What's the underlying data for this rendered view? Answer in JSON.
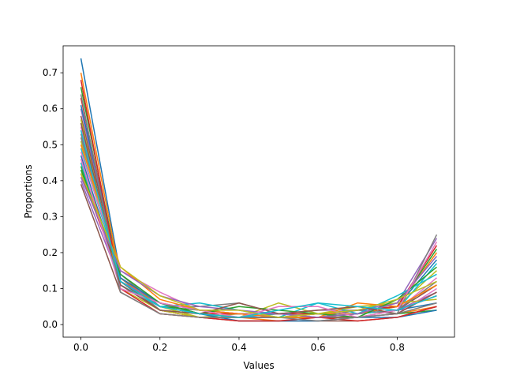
{
  "chart_data": {
    "type": "line",
    "title": "",
    "xlabel": "Values",
    "ylabel": "Proportions",
    "x": [
      0.0,
      0.1,
      0.2,
      0.3,
      0.4,
      0.5,
      0.6,
      0.7,
      0.8,
      0.9
    ],
    "xlim": [
      -0.045,
      0.945
    ],
    "ylim": [
      -0.035,
      0.775
    ],
    "xticks": [
      0.0,
      0.2,
      0.4,
      0.6,
      0.8
    ],
    "xtick_labels": [
      "0.0",
      "0.2",
      "0.4",
      "0.6",
      "0.8"
    ],
    "yticks": [
      0.0,
      0.1,
      0.2,
      0.3,
      0.4,
      0.5,
      0.6,
      0.7
    ],
    "ytick_labels": [
      "0.0",
      "0.1",
      "0.2",
      "0.3",
      "0.4",
      "0.5",
      "0.6",
      "0.7"
    ],
    "grid": false,
    "legend": "none",
    "colors": [
      "#1f77b4",
      "#ff7f0e",
      "#2ca02c",
      "#d62728",
      "#9467bd",
      "#8c564b",
      "#e377c2",
      "#7f7f7f",
      "#bcbd22",
      "#17becf"
    ],
    "series": [
      {
        "values": [
          0.74,
          0.14,
          0.05,
          0.03,
          0.02,
          0.02,
          0.02,
          0.03,
          0.04,
          0.06
        ]
      },
      {
        "values": [
          0.7,
          0.13,
          0.04,
          0.02,
          0.02,
          0.01,
          0.02,
          0.02,
          0.03,
          0.05
        ]
      },
      {
        "values": [
          0.66,
          0.12,
          0.05,
          0.03,
          0.02,
          0.02,
          0.02,
          0.02,
          0.03,
          0.04
        ]
      },
      {
        "values": [
          0.63,
          0.12,
          0.04,
          0.02,
          0.02,
          0.02,
          0.03,
          0.03,
          0.04,
          0.08
        ]
      },
      {
        "values": [
          0.6,
          0.11,
          0.05,
          0.03,
          0.03,
          0.02,
          0.02,
          0.03,
          0.04,
          0.09
        ]
      },
      {
        "values": [
          0.58,
          0.12,
          0.04,
          0.02,
          0.02,
          0.02,
          0.02,
          0.02,
          0.04,
          0.11
        ]
      },
      {
        "values": [
          0.55,
          0.11,
          0.05,
          0.03,
          0.02,
          0.03,
          0.02,
          0.03,
          0.04,
          0.13
        ]
      },
      {
        "values": [
          0.53,
          0.13,
          0.04,
          0.03,
          0.02,
          0.02,
          0.03,
          0.03,
          0.04,
          0.12
        ]
      },
      {
        "values": [
          0.51,
          0.12,
          0.05,
          0.02,
          0.03,
          0.02,
          0.02,
          0.03,
          0.05,
          0.15
        ]
      },
      {
        "values": [
          0.49,
          0.13,
          0.05,
          0.03,
          0.02,
          0.03,
          0.03,
          0.03,
          0.04,
          0.17
        ]
      },
      {
        "values": [
          0.47,
          0.12,
          0.06,
          0.03,
          0.03,
          0.02,
          0.03,
          0.03,
          0.05,
          0.18
        ]
      },
      {
        "values": [
          0.45,
          0.13,
          0.05,
          0.03,
          0.03,
          0.03,
          0.03,
          0.03,
          0.05,
          0.2
        ]
      },
      {
        "values": [
          0.44,
          0.12,
          0.05,
          0.04,
          0.03,
          0.03,
          0.03,
          0.04,
          0.05,
          0.21
        ]
      },
      {
        "values": [
          0.42,
          0.13,
          0.06,
          0.03,
          0.03,
          0.03,
          0.03,
          0.04,
          0.05,
          0.22
        ]
      },
      {
        "values": [
          0.4,
          0.12,
          0.06,
          0.04,
          0.03,
          0.03,
          0.04,
          0.04,
          0.06,
          0.24
        ]
      },
      {
        "values": [
          0.39,
          0.09,
          0.03,
          0.02,
          0.01,
          0.01,
          0.01,
          0.01,
          0.02,
          0.05
        ]
      },
      {
        "values": [
          0.48,
          0.15,
          0.09,
          0.04,
          0.03,
          0.02,
          0.03,
          0.02,
          0.03,
          0.1
        ]
      },
      {
        "values": [
          0.52,
          0.14,
          0.05,
          0.05,
          0.06,
          0.03,
          0.02,
          0.04,
          0.03,
          0.25
        ]
      },
      {
        "values": [
          0.57,
          0.1,
          0.04,
          0.02,
          0.02,
          0.06,
          0.03,
          0.05,
          0.06,
          0.07
        ]
      },
      {
        "values": [
          0.45,
          0.11,
          0.05,
          0.06,
          0.04,
          0.02,
          0.06,
          0.03,
          0.08,
          0.14
        ]
      },
      {
        "values": [
          0.61,
          0.13,
          0.06,
          0.03,
          0.01,
          0.01,
          0.01,
          0.02,
          0.02,
          0.04
        ]
      },
      {
        "values": [
          0.5,
          0.16,
          0.07,
          0.04,
          0.03,
          0.02,
          0.02,
          0.06,
          0.05,
          0.11
        ]
      },
      {
        "values": [
          0.43,
          0.14,
          0.06,
          0.03,
          0.05,
          0.04,
          0.03,
          0.02,
          0.07,
          0.16
        ]
      },
      {
        "values": [
          0.68,
          0.1,
          0.03,
          0.02,
          0.01,
          0.01,
          0.02,
          0.01,
          0.02,
          0.05
        ]
      },
      {
        "values": [
          0.41,
          0.15,
          0.08,
          0.05,
          0.04,
          0.03,
          0.02,
          0.03,
          0.06,
          0.19
        ]
      },
      {
        "values": [
          0.56,
          0.11,
          0.04,
          0.03,
          0.06,
          0.03,
          0.04,
          0.05,
          0.03,
          0.09
        ]
      },
      {
        "values": [
          0.46,
          0.1,
          0.06,
          0.04,
          0.02,
          0.05,
          0.05,
          0.02,
          0.04,
          0.23
        ]
      },
      {
        "values": [
          0.64,
          0.09,
          0.03,
          0.02,
          0.02,
          0.02,
          0.01,
          0.02,
          0.03,
          0.06
        ]
      },
      {
        "values": [
          0.42,
          0.16,
          0.08,
          0.04,
          0.04,
          0.02,
          0.03,
          0.04,
          0.07,
          0.12
        ]
      },
      {
        "values": [
          0.54,
          0.12,
          0.05,
          0.03,
          0.02,
          0.04,
          0.06,
          0.05,
          0.04,
          0.08
        ]
      }
    ]
  }
}
